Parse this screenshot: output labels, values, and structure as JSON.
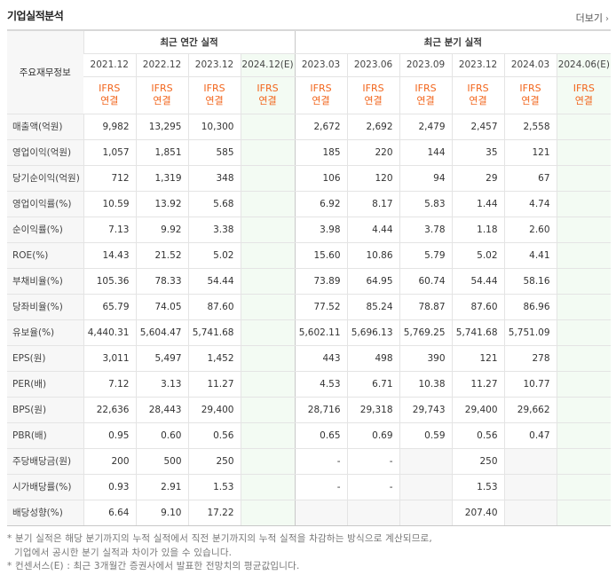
{
  "header": {
    "title": "기업실적분석",
    "more_label": "더보기"
  },
  "table": {
    "corner_label": "주요재무정보",
    "group_annual": "최근 연간 실적",
    "group_quarter": "최근 분기 실적",
    "periods": [
      "2021.12",
      "2022.12",
      "2023.12",
      "2024.12(E)",
      "2023.03",
      "2023.06",
      "2023.09",
      "2023.12",
      "2024.03",
      "2024.06(E)"
    ],
    "standard_top": "IFRS",
    "standard_bottom": "연결",
    "rows": [
      {
        "label": "매출액(억원)",
        "values": [
          "9,982",
          "13,295",
          "10,300",
          "",
          "2,672",
          "2,692",
          "2,479",
          "2,457",
          "2,558",
          ""
        ]
      },
      {
        "label": "영업이익(억원)",
        "values": [
          "1,057",
          "1,851",
          "585",
          "",
          "185",
          "220",
          "144",
          "35",
          "121",
          ""
        ]
      },
      {
        "label": "당기순이익(억원)",
        "values": [
          "712",
          "1,319",
          "348",
          "",
          "106",
          "120",
          "94",
          "29",
          "67",
          ""
        ]
      },
      {
        "label": "영업이익률(%)",
        "values": [
          "10.59",
          "13.92",
          "5.68",
          "",
          "6.92",
          "8.17",
          "5.83",
          "1.44",
          "4.74",
          ""
        ]
      },
      {
        "label": "순이익률(%)",
        "values": [
          "7.13",
          "9.92",
          "3.38",
          "",
          "3.98",
          "4.44",
          "3.78",
          "1.18",
          "2.60",
          ""
        ]
      },
      {
        "label": "ROE(%)",
        "values": [
          "14.43",
          "21.52",
          "5.02",
          "",
          "15.60",
          "10.86",
          "5.79",
          "5.02",
          "4.41",
          ""
        ]
      },
      {
        "label": "부채비율(%)",
        "values": [
          "105.36",
          "78.33",
          "54.44",
          "",
          "73.89",
          "64.95",
          "60.74",
          "54.44",
          "58.16",
          ""
        ]
      },
      {
        "label": "당좌비율(%)",
        "values": [
          "65.79",
          "74.05",
          "87.60",
          "",
          "77.52",
          "85.24",
          "78.87",
          "87.60",
          "86.96",
          ""
        ]
      },
      {
        "label": "유보율(%)",
        "values": [
          "4,440.31",
          "5,604.47",
          "5,741.68",
          "",
          "5,602.11",
          "5,696.13",
          "5,769.25",
          "5,741.68",
          "5,751.09",
          ""
        ]
      },
      {
        "label": "EPS(원)",
        "values": [
          "3,011",
          "5,497",
          "1,452",
          "",
          "443",
          "498",
          "390",
          "121",
          "278",
          ""
        ]
      },
      {
        "label": "PER(배)",
        "values": [
          "7.12",
          "3.13",
          "11.27",
          "",
          "4.53",
          "6.71",
          "10.38",
          "11.27",
          "10.77",
          ""
        ]
      },
      {
        "label": "BPS(원)",
        "values": [
          "22,636",
          "28,443",
          "29,400",
          "",
          "28,716",
          "29,318",
          "29,743",
          "29,400",
          "29,662",
          ""
        ]
      },
      {
        "label": "PBR(배)",
        "values": [
          "0.95",
          "0.60",
          "0.56",
          "",
          "0.65",
          "0.69",
          "0.59",
          "0.56",
          "0.47",
          ""
        ]
      },
      {
        "label": "주당배당금(원)",
        "values": [
          "200",
          "500",
          "250",
          "",
          "-",
          "-",
          "",
          "250",
          "",
          ""
        ]
      },
      {
        "label": "시가배당률(%)",
        "values": [
          "0.93",
          "2.91",
          "1.53",
          "",
          "-",
          "-",
          "",
          "1.53",
          "",
          ""
        ]
      },
      {
        "label": "배당성향(%)",
        "values": [
          "6.64",
          "9.10",
          "17.22",
          "",
          "",
          "",
          "",
          "207.40",
          "",
          ""
        ]
      }
    ]
  },
  "notes": {
    "line1": "* 분기 실적은 해당 분기까지의 누적 실적에서 직전 분기까지의 누적 실적을 차감하는 방식으로 계산되므로,",
    "line2": "기업에서 공시한 분기 실적과 차이가 있을 수 있습니다.",
    "line3": "* 컨센서스(E) : 최근 3개월간 증권사에서 발표한 전망치의 평균값입니다."
  }
}
